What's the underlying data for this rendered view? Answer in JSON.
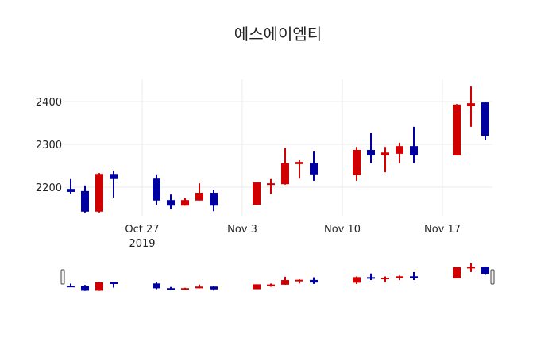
{
  "chart_data": {
    "type": "candlestick",
    "title": "에스에이엠티",
    "xlabel": "",
    "ylabel": "",
    "ylim": [
      2130,
      2450
    ],
    "yticks": [
      2200,
      2300,
      2400
    ],
    "xticks": [
      {
        "label": "Oct 27",
        "sublabel": "2019",
        "date": "2019-10-27"
      },
      {
        "label": "Nov 3",
        "sublabel": "",
        "date": "2019-11-03"
      },
      {
        "label": "Nov 10",
        "sublabel": "",
        "date": "2019-11-10"
      },
      {
        "label": "Nov 17",
        "sublabel": "",
        "date": "2019-11-17"
      }
    ],
    "grid": true,
    "rangeslider": true,
    "increasing_color": "#d10000",
    "decreasing_color": "#0000a0",
    "candles": [
      {
        "date": "2019-10-22",
        "open": 2196,
        "high": 2219,
        "low": 2185,
        "close": 2189
      },
      {
        "date": "2019-10-23",
        "open": 2191,
        "high": 2204,
        "low": 2141,
        "close": 2143
      },
      {
        "date": "2019-10-24",
        "open": 2143,
        "high": 2233,
        "low": 2141,
        "close": 2231
      },
      {
        "date": "2019-10-25",
        "open": 2231,
        "high": 2239,
        "low": 2176,
        "close": 2219
      },
      {
        "date": "2019-10-28",
        "open": 2220,
        "high": 2230,
        "low": 2159,
        "close": 2169
      },
      {
        "date": "2019-10-29",
        "open": 2170,
        "high": 2183,
        "low": 2148,
        "close": 2157
      },
      {
        "date": "2019-10-30",
        "open": 2157,
        "high": 2174,
        "low": 2157,
        "close": 2170
      },
      {
        "date": "2019-10-31",
        "open": 2169,
        "high": 2209,
        "low": 2169,
        "close": 2187
      },
      {
        "date": "2019-11-01",
        "open": 2187,
        "high": 2194,
        "low": 2144,
        "close": 2157
      },
      {
        "date": "2019-11-04",
        "open": 2159,
        "high": 2211,
        "low": 2159,
        "close": 2211
      },
      {
        "date": "2019-11-05",
        "open": 2206,
        "high": 2219,
        "low": 2185,
        "close": 2209
      },
      {
        "date": "2019-11-06",
        "open": 2207,
        "high": 2291,
        "low": 2206,
        "close": 2256
      },
      {
        "date": "2019-11-07",
        "open": 2254,
        "high": 2263,
        "low": 2220,
        "close": 2259
      },
      {
        "date": "2019-11-08",
        "open": 2257,
        "high": 2285,
        "low": 2215,
        "close": 2230
      },
      {
        "date": "2019-11-11",
        "open": 2228,
        "high": 2294,
        "low": 2215,
        "close": 2287
      },
      {
        "date": "2019-11-12",
        "open": 2287,
        "high": 2326,
        "low": 2256,
        "close": 2274
      },
      {
        "date": "2019-11-13",
        "open": 2274,
        "high": 2294,
        "low": 2235,
        "close": 2281
      },
      {
        "date": "2019-11-14",
        "open": 2278,
        "high": 2304,
        "low": 2256,
        "close": 2296
      },
      {
        "date": "2019-11-15",
        "open": 2296,
        "high": 2341,
        "low": 2256,
        "close": 2274
      },
      {
        "date": "2019-11-18",
        "open": 2274,
        "high": 2394,
        "low": 2274,
        "close": 2393
      },
      {
        "date": "2019-11-19",
        "open": 2389,
        "high": 2435,
        "low": 2341,
        "close": 2396
      },
      {
        "date": "2019-11-20",
        "open": 2398,
        "high": 2400,
        "low": 2311,
        "close": 2320
      }
    ]
  }
}
